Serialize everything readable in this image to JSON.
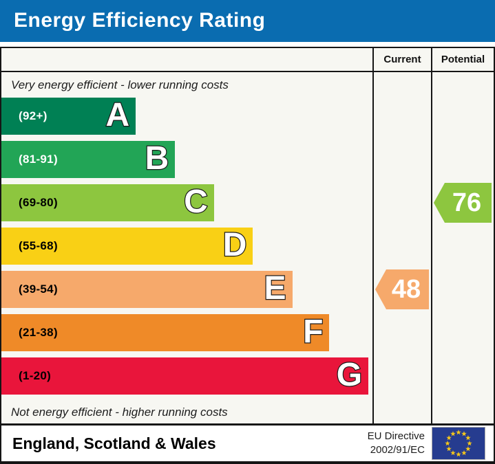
{
  "title": "Energy Efficiency Rating",
  "table": {
    "current_header": "Current",
    "potential_header": "Potential",
    "top_note": "Very energy efficient - lower running costs",
    "bottom_note": "Not energy efficient - higher running costs"
  },
  "bands": [
    {
      "letter": "A",
      "range": "(92+)",
      "color": "#008054",
      "label_color": "#ffffff",
      "width_pct": 36.2
    },
    {
      "letter": "B",
      "range": "(81-91)",
      "color": "#22a556",
      "label_color": "#ffffff",
      "width_pct": 46.8
    },
    {
      "letter": "C",
      "range": "(69-80)",
      "color": "#8dc63f",
      "label_color": "#000000",
      "width_pct": 57.3
    },
    {
      "letter": "D",
      "range": "(55-68)",
      "color": "#f9d015",
      "label_color": "#000000",
      "width_pct": 67.8
    },
    {
      "letter": "E",
      "range": "(39-54)",
      "color": "#f6a96b",
      "label_color": "#000000",
      "width_pct": 78.4
    },
    {
      "letter": "F",
      "range": "(21-38)",
      "color": "#ef8a28",
      "label_color": "#000000",
      "width_pct": 88.4
    },
    {
      "letter": "G",
      "range": "(1-20)",
      "color": "#e9153b",
      "label_color": "#000000",
      "width_pct": 98.9
    }
  ],
  "ratings": {
    "current": {
      "value": "48",
      "band": "E",
      "band_index": 4,
      "color": "#f6a96b"
    },
    "potential": {
      "value": "76",
      "band": "C",
      "band_index": 2,
      "color": "#8dc63f"
    }
  },
  "footer": {
    "region": "England, Scotland & Wales",
    "directive_line1": "EU Directive",
    "directive_line2": "2002/91/EC",
    "flag_icon": "eu-flag"
  },
  "colors": {
    "title_bg": "#0a6cb0",
    "border": "#151515",
    "chart_bg": "#f7f7f2",
    "flag_bg": "#263c8f",
    "flag_star": "#f8c819"
  },
  "chart_data": {
    "type": "bar",
    "title": "Energy Efficiency Rating",
    "orientation": "horizontal",
    "categories": [
      "A",
      "B",
      "C",
      "D",
      "E",
      "F",
      "G"
    ],
    "ranges": [
      "(92+)",
      "(81-91)",
      "(69-80)",
      "(55-68)",
      "(39-54)",
      "(21-38)",
      "(1-20)"
    ],
    "bar_colors": [
      "#008054",
      "#22a556",
      "#8dc63f",
      "#f9d015",
      "#f6a96b",
      "#ef8a28",
      "#e9153b"
    ],
    "bar_width_pct": [
      36.2,
      46.8,
      57.3,
      67.8,
      78.4,
      88.4,
      98.9
    ],
    "scale": [
      1,
      100
    ],
    "markers": [
      {
        "name": "Current",
        "value": 48,
        "band": "E"
      },
      {
        "name": "Potential",
        "value": 76,
        "band": "C"
      }
    ],
    "top_annotation": "Very energy efficient - lower running costs",
    "bottom_annotation": "Not energy efficient - higher running costs",
    "legend_position": "none",
    "grid": false
  }
}
